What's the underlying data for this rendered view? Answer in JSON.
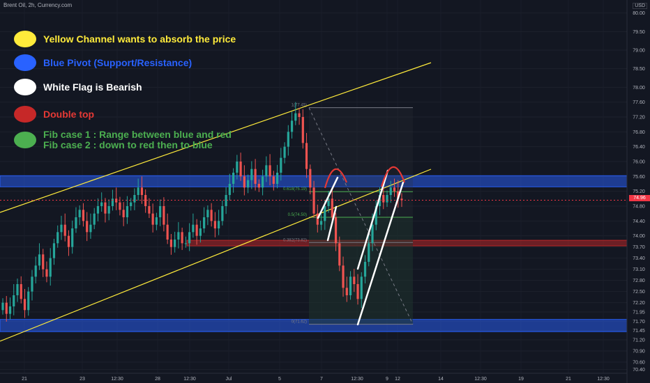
{
  "header": {
    "title": "Brent Oil, 2h, Currency.com",
    "currency": "USD"
  },
  "legend": [
    {
      "text": "Yellow Channel wants to absorb the price",
      "color": "#ffeb3b",
      "text_color": "#ffeb3b"
    },
    {
      "text": "Blue Pivot (Support/Resistance)",
      "color": "#2962ff",
      "text_color": "#2962ff"
    },
    {
      "text": "White Flag is Bearish",
      "color": "#ffffff",
      "text_color": "#ffffff"
    },
    {
      "text": "Double top",
      "color": "#c62828",
      "text_color": "#e53935"
    },
    {
      "text": "Fib case 1 : Range between blue and red\nFib case 2 : down to red then to blue",
      "color": "#4caf50",
      "text_color": "#4caf50"
    }
  ],
  "current_price": "74.96",
  "chart_data": {
    "type": "candlestick",
    "title": "Brent Oil, 2h, Currency.com",
    "y_axis": {
      "ticks": [
        "80.00",
        "79.50",
        "79.00",
        "78.50",
        "78.00",
        "77.60",
        "77.20",
        "76.80",
        "76.40",
        "76.00",
        "75.60",
        "75.20",
        "74.80",
        "74.40",
        "74.00",
        "73.70",
        "73.40",
        "73.10",
        "72.80",
        "72.50",
        "72.20",
        "71.95",
        "71.70",
        "71.45",
        "71.20",
        "70.90",
        "70.60",
        "70.40"
      ],
      "range": [
        70.3,
        80.2
      ]
    },
    "x_axis": {
      "ticks": [
        "21",
        "23",
        "12:30",
        "28",
        "12:30",
        "Jul",
        "5",
        "7",
        "9",
        "12:30",
        "12",
        "14",
        "12:30",
        "19",
        "21",
        "12:30"
      ]
    },
    "fib_levels": [
      {
        "ratio": "1",
        "price": 77.45,
        "label": "1(77.45)"
      },
      {
        "ratio": "0.618",
        "price": 75.19,
        "label": "0.618(75.19)"
      },
      {
        "ratio": "0.5",
        "price": 74.5,
        "label": "0.5(74.50)"
      },
      {
        "ratio": "0.382",
        "price": 73.82,
        "label": "0.382(73.82)"
      },
      {
        "ratio": "0",
        "price": 71.62,
        "label": "0(71.62)"
      }
    ],
    "zones": [
      {
        "name": "blue-pivot-upper",
        "from": 75.32,
        "to": 75.62,
        "color": "#2962ff"
      },
      {
        "name": "blue-pivot-lower",
        "from": 71.42,
        "to": 71.75,
        "color": "#2962ff"
      },
      {
        "name": "red-support",
        "from": 73.73,
        "to": 73.88,
        "color": "#c62828"
      }
    ],
    "yellow_channel": {
      "upper": [
        {
          "x": 0,
          "y": 74.6
        },
        {
          "x": 120,
          "y": 78.6
        }
      ],
      "lower": [
        {
          "x": 0,
          "y": 71.3
        },
        {
          "x": 120,
          "y": 75.6
        }
      ]
    },
    "closes": [
      72.2,
      71.9,
      72.1,
      72.4,
      72.7,
      72.3,
      72.0,
      72.5,
      72.9,
      73.2,
      73.5,
      73.1,
      72.9,
      73.4,
      73.8,
      74.1,
      74.3,
      74.0,
      73.7,
      74.2,
      74.5,
      74.7,
      74.4,
      74.1,
      74.3,
      74.6,
      74.8,
      74.9,
      74.6,
      74.8,
      75.0,
      74.9,
      74.7,
      74.5,
      74.8,
      74.9,
      75.1,
      75.3,
      75.1,
      74.8,
      74.6,
      74.3,
      74.5,
      74.8,
      74.3,
      73.9,
      73.7,
      73.9,
      74.1,
      73.8,
      73.8,
      74.1,
      74.3,
      74.0,
      74.2,
      74.5,
      74.7,
      74.4,
      74.2,
      74.4,
      74.8,
      75.1,
      75.4,
      75.7,
      76.0,
      75.6,
      75.3,
      75.5,
      75.8,
      75.4,
      75.3,
      75.6,
      75.9,
      75.6,
      75.4,
      75.7,
      76.1,
      76.4,
      76.8,
      77.1,
      77.3,
      77.2,
      76.5,
      75.8,
      75.3,
      74.6,
      74.3,
      74.4,
      74.8,
      75.0,
      74.5,
      73.8,
      73.2,
      72.6,
      72.4,
      72.9,
      72.7,
      72.3,
      72.9,
      73.3,
      73.8,
      74.3,
      74.8,
      75.1,
      74.9,
      75.1,
      75.3,
      75.2,
      75.0,
      74.96
    ]
  }
}
